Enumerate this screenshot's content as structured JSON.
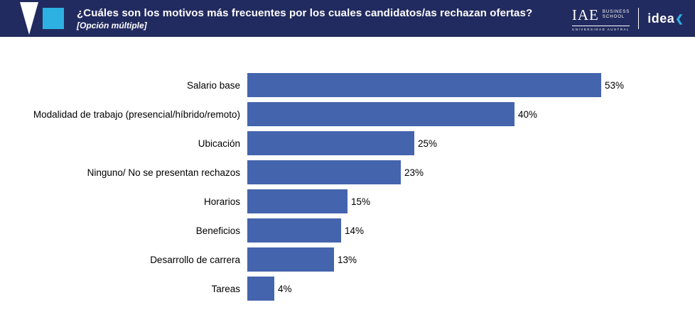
{
  "header": {
    "title": "¿Cuáles son los motivos más frecuentes por los cuales candidatos/as rechazan ofertas?",
    "subtitle": "[Opción múltiple]",
    "brand_iae": "IAE",
    "brand_iae_line1": "BUSINESS",
    "brand_iae_line2": "SCHOOL",
    "brand_iae_line3": "UNIVERSIDAD AUSTRAL",
    "brand_idea": "idea",
    "brand_idea_mark": "❮"
  },
  "colors": {
    "header_bg": "#222b5f",
    "bar": "#4464ad",
    "accent": "#2cb1e2",
    "text": "#000000"
  },
  "chart_data": {
    "type": "bar",
    "orientation": "horizontal",
    "title": "¿Cuáles son los motivos más frecuentes por los cuales candidatos/as rechazan ofertas?",
    "subtitle": "[Opción múltiple]",
    "categories": [
      "Salario base",
      "Modalidad de trabajo (presencial/híbrido/remoto)",
      "Ubicación",
      "Ninguno/ No se presentan rechazos",
      "Horarios",
      "Beneficios",
      "Desarrollo de carrera",
      "Tareas"
    ],
    "values": [
      53,
      40,
      25,
      23,
      15,
      14,
      13,
      4
    ],
    "value_labels": [
      "53%",
      "40%",
      "25%",
      "23%",
      "15%",
      "14%",
      "13%",
      "4%"
    ],
    "unit": "%",
    "xlim": [
      0,
      56
    ],
    "grid": false,
    "legend": "none",
    "bar_color": "#4464ad"
  }
}
